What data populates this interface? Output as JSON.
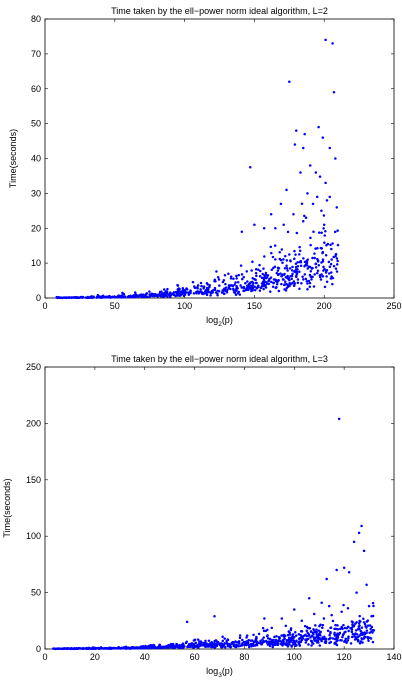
{
  "chart_data": [
    {
      "type": "scatter",
      "title": "Time taken by the ell−power norm ideal algorithm, L=2",
      "xlabel_main": "log",
      "xlabel_sub": "2",
      "xlabel_tail": "(p)",
      "ylabel": "Time(seconds)",
      "xlim": [
        0,
        250
      ],
      "ylim": [
        0,
        80
      ],
      "xticks": [
        0,
        50,
        100,
        150,
        200,
        250
      ],
      "yticks": [
        0,
        10,
        20,
        30,
        40,
        50,
        60,
        70,
        80
      ],
      "grid": false,
      "marker_color": "#0000ff",
      "outliers": {
        "x": [
          201,
          206,
          207,
          175,
          147,
          180,
          186,
          185,
          196,
          199,
          204,
          208,
          179,
          190,
          194,
          201,
          173,
          183,
          188,
          169,
          204,
          192,
          198,
          162,
          178,
          187,
          200,
          209,
          171,
          165,
          195,
          141,
          157,
          185,
          202,
          150
        ],
        "y": [
          74,
          73,
          59,
          62,
          37.5,
          48,
          47,
          43,
          49,
          46,
          43,
          40,
          44,
          38,
          36,
          33,
          31,
          36,
          30,
          27,
          29,
          27,
          25,
          24,
          24,
          23,
          21,
          26,
          21,
          20,
          29,
          19,
          20,
          22,
          28,
          21
        ]
      },
      "trend": {
        "description": "main cloud of points; time grows roughly exponentially with log2(p)",
        "x_range": [
          8,
          210
        ],
        "count": 760,
        "median_at_200": 10,
        "median_at_150": 4.5,
        "median_at_100": 1.5,
        "median_at_50": 0.3
      }
    },
    {
      "type": "scatter",
      "title": "Time taken by the ell−power norm ideal algorithm, L=3",
      "xlabel_main": "log",
      "xlabel_sub": "3",
      "xlabel_tail": "(p)",
      "ylabel": "Time(seconds)",
      "xlim": [
        0,
        140
      ],
      "ylim": [
        0,
        250
      ],
      "xticks": [
        0,
        20,
        40,
        60,
        80,
        100,
        120,
        140
      ],
      "yticks": [
        0,
        50,
        100,
        150,
        200,
        250
      ],
      "grid": false,
      "marker_color": "#0000ff",
      "outliers": {
        "x": [
          118,
          127,
          126,
          124,
          128,
          117,
          120,
          113,
          122,
          129,
          106,
          57,
          68,
          88,
          100,
          111,
          130,
          125,
          119,
          115,
          108,
          131,
          95,
          103,
          114
        ],
        "y": [
          204,
          109,
          103,
          95,
          87,
          70,
          72,
          62,
          68,
          57,
          45,
          24,
          29,
          27,
          35,
          41,
          38,
          50,
          33,
          30,
          31,
          29,
          27,
          25,
          38
        ]
      },
      "trend": {
        "description": "main cloud of points; time grows roughly exponentially with log3(p)",
        "x_range": [
          3,
          132
        ],
        "count": 900,
        "median_at_130": 15,
        "median_at_100": 8,
        "median_at_60": 3,
        "median_at_20": 0.5
      }
    }
  ]
}
